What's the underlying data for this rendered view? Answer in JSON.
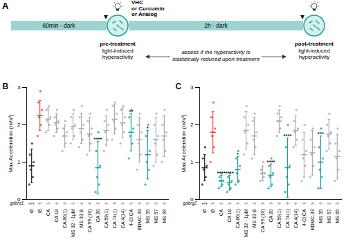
{
  "diagram": {
    "panel_label": "A",
    "steps": [
      "60min - dark",
      "2h - dark"
    ],
    "treatment": [
      "VHC",
      "or Curcumin",
      "or Analog"
    ],
    "pre": [
      "pre-treatment",
      "light-induced",
      "hyperactivity"
    ],
    "post": [
      "post-treatment",
      "light-induced",
      "hyperactivity"
    ],
    "note": [
      "assess if the hyperactivity is",
      "statistically reduced upon treatment"
    ]
  },
  "chart_data": [
    {
      "type": "scatter",
      "title": "B",
      "y_label": "Max Acceleration (m/s²)",
      "categories": [
        "Ø",
        "Ø",
        "CA",
        "CA 18",
        "CA 80(1)",
        "MS 32 - 1µM",
        "MS 33 B",
        "CA 99 (10)",
        "CA 20",
        "CA 59(1)",
        "CA 74(1)",
        "CA 4(14)",
        "4-Cl CA",
        "BDMC-33",
        "MS 55",
        "MS 57",
        "MS 69"
      ],
      "group_title": "gabra1",
      "group_labels": [
        "+/+",
        "-/-",
        "-/-",
        "-/-",
        "-/-",
        "-/-",
        "-/-",
        "-/-",
        "-/-",
        "-/-",
        "-/-",
        "-/-",
        "-/-",
        "-/-",
        "-/-",
        "-/-",
        "-/-"
      ],
      "points": [
        [
          0.4,
          0.6,
          0.8,
          1.0,
          1.2,
          1.5
        ],
        [
          1.7,
          2.0,
          2.2,
          2.4,
          2.6,
          2.9
        ],
        [
          1.8,
          2.0,
          2.1,
          2.2,
          2.4,
          2.5
        ],
        [
          1.7,
          1.9,
          2.0,
          2.1,
          2.2,
          2.4
        ],
        [
          1.3,
          1.5,
          1.7,
          1.8,
          1.9,
          2.1
        ],
        [
          1.5,
          1.7,
          1.9,
          2.0,
          2.2,
          2.4
        ],
        [
          1.4,
          1.6,
          1.8,
          2.0,
          2.2,
          2.5
        ],
        [
          1.2,
          1.5,
          1.7,
          1.9,
          2.1,
          2.3
        ],
        [
          0.2,
          0.4,
          0.6,
          0.9,
          1.3,
          1.8
        ],
        [
          1.3,
          1.6,
          1.8,
          2.0,
          2.1,
          2.4
        ],
        [
          1.6,
          1.9,
          2.1,
          2.3,
          2.5,
          2.6
        ],
        [
          1.5,
          1.8,
          2.0,
          2.2,
          2.4,
          2.5
        ],
        [
          1.1,
          1.5,
          1.7,
          1.9,
          2.2,
          2.4
        ],
        [
          0.8,
          1.2,
          1.5,
          1.8,
          2.0,
          2.3
        ],
        [
          0.4,
          0.8,
          1.0,
          1.3,
          1.7,
          2.0
        ],
        [
          0.9,
          1.2,
          1.5,
          1.7,
          2.0,
          2.3
        ],
        [
          1.0,
          1.3,
          1.6,
          1.8,
          2.0,
          2.4
        ]
      ],
      "means": [
        0.9,
        2.25,
        2.15,
        2.05,
        1.7,
        1.95,
        1.9,
        1.75,
        0.85,
        1.85,
        2.15,
        2.05,
        1.8,
        1.6,
        1.2,
        1.6,
        1.7
      ],
      "errors": [
        0.45,
        0.4,
        0.3,
        0.25,
        0.3,
        0.35,
        0.4,
        0.45,
        0.7,
        0.4,
        0.4,
        0.4,
        0.5,
        0.6,
        0.65,
        0.6,
        0.55
      ],
      "colors": [
        "#222222",
        "#e8433a",
        "#aaaaaa",
        "#aaaaaa",
        "#aaaaaa",
        "#aaaaaa",
        "#aaaaaa",
        "#aaaaaa",
        "#1e9e9a",
        "#aaaaaa",
        "#aaaaaa",
        "#aaaaaa",
        "#1e9e9a",
        "#aaaaaa",
        "#1e9e9a",
        "#aaaaaa",
        "#aaaaaa"
      ],
      "annotations": [
        null,
        null,
        null,
        null,
        null,
        null,
        null,
        null,
        "****",
        null,
        null,
        null,
        "**",
        null,
        "*",
        null,
        null
      ],
      "ylim": [
        0,
        3
      ],
      "yticks": [
        0,
        1,
        2,
        3
      ]
    },
    {
      "type": "scatter",
      "title": "C",
      "y_label": "Max Acceleration (m/s²)",
      "categories": [
        "Ø",
        "Ø",
        "CA",
        "CA 18",
        "CA 80(1)",
        "MS 32 - 1µM",
        "MS 33 B",
        "CA 99 (10)",
        "CA 20",
        "CA 59(1)",
        "CA 74(1)",
        "CA 4(14)",
        "4-Cl CA",
        "BDMC-33",
        "MS 55",
        "MS 57",
        "MS 69"
      ],
      "group_title": "gabrg2",
      "group_labels": [
        "+/+",
        "-/-",
        "-/-",
        "-/-",
        "-/-",
        "-/-",
        "-/-",
        "-/-",
        "-/-",
        "-/-",
        "-/-",
        "-/-",
        "-/-",
        "-/-",
        "-/-",
        "-/-",
        "-/-"
      ],
      "points": [
        [
          0.4,
          0.6,
          0.8,
          0.9,
          1.1,
          1.4
        ],
        [
          1.0,
          1.4,
          1.7,
          1.9,
          2.2,
          2.6
        ],
        [
          0.3,
          0.4,
          0.5,
          0.5,
          0.6,
          0.7
        ],
        [
          0.2,
          0.3,
          0.4,
          0.5,
          0.6,
          0.7
        ],
        [
          0.4,
          0.5,
          0.7,
          0.9,
          1.1,
          1.3
        ],
        [
          1.2,
          1.5,
          1.8,
          2.0,
          2.2,
          2.5
        ],
        [
          1.1,
          1.4,
          1.6,
          1.8,
          2.1,
          2.3
        ],
        [
          0.5,
          0.6,
          0.7,
          0.7,
          0.8,
          1.0
        ],
        [
          0.3,
          0.4,
          0.6,
          0.7,
          0.9,
          1.1
        ],
        [
          1.7,
          1.9,
          2.1,
          2.2,
          2.3,
          2.5
        ],
        [
          0.2,
          0.4,
          0.6,
          0.9,
          1.4,
          2.0
        ],
        [
          1.4,
          1.6,
          1.8,
          1.9,
          2.1,
          2.4
        ],
        [
          0.5,
          0.9,
          1.1,
          1.3,
          1.6,
          2.0
        ],
        [
          0.6,
          0.9,
          1.2,
          1.4,
          1.6,
          1.9
        ],
        [
          0.3,
          0.6,
          0.8,
          1.1,
          1.4,
          1.9
        ],
        [
          1.3,
          1.5,
          1.7,
          1.8,
          2.0,
          2.3
        ],
        [
          0.5,
          0.8,
          1.1,
          1.3,
          1.5,
          1.9
        ]
      ],
      "means": [
        0.85,
        1.8,
        0.5,
        0.45,
        0.8,
        1.85,
        1.7,
        0.7,
        0.65,
        2.1,
        0.85,
        1.85,
        1.2,
        1.25,
        1.0,
        1.75,
        1.15
      ],
      "errors": [
        0.35,
        0.55,
        0.15,
        0.2,
        0.35,
        0.5,
        0.5,
        0.2,
        0.3,
        0.3,
        0.8,
        0.4,
        0.6,
        0.6,
        0.7,
        0.4,
        0.6
      ],
      "colors": [
        "#222222",
        "#e8433a",
        "#1e9e9a",
        "#1e9e9a",
        "#1e9e9a",
        "#aaaaaa",
        "#aaaaaa",
        "#aaaaaa",
        "#1e9e9a",
        "#aaaaaa",
        "#1e9e9a",
        "#aaaaaa",
        "#aaaaaa",
        "#aaaaaa",
        "#1e9e9a",
        "#aaaaaa",
        "#aaaaaa"
      ],
      "annotations": [
        null,
        null,
        "****",
        "****",
        "*",
        null,
        null,
        null,
        "****",
        null,
        "****",
        null,
        null,
        null,
        "***",
        null,
        null
      ],
      "ylim": [
        0,
        3
      ],
      "yticks": [
        0,
        1,
        2,
        3
      ]
    }
  ]
}
